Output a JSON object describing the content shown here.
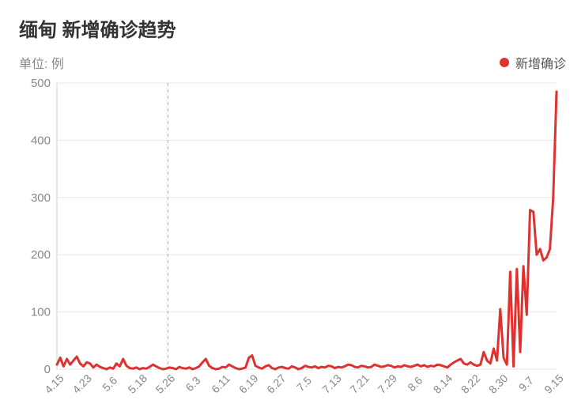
{
  "chart": {
    "type": "line",
    "title": "缅甸 新增确诊趋势",
    "unit_label": "单位: 例",
    "legend_label": "新增确诊",
    "series_color": "#e03131",
    "legend_dot_color": "#e03131",
    "background_color": "#ffffff",
    "grid_color": "#e7e7e7",
    "axis_label_color": "#888888",
    "title_color": "#333333",
    "title_fontsize": 24,
    "label_fontsize": 15,
    "line_width": 3,
    "ylim": [
      0,
      500
    ],
    "ytick_step": 100,
    "yticks": [
      0,
      100,
      200,
      300,
      400,
      500
    ],
    "xticks": [
      "4.15",
      "4.23",
      "5.6",
      "5.18",
      "5.26",
      "6.3",
      "6.11",
      "6.19",
      "6.27",
      "7.5",
      "7.13",
      "7.21",
      "7.29",
      "8.6",
      "8.14",
      "8.22",
      "8.30",
      "9.7",
      "9.15"
    ],
    "xtick_rotation": -45,
    "vline_at_index": 4,
    "vline_color": "#b8b8b8",
    "vline_dash": "4 4",
    "values": [
      8,
      20,
      5,
      18,
      8,
      15,
      22,
      10,
      5,
      12,
      10,
      3,
      8,
      4,
      2,
      0,
      3,
      1,
      10,
      5,
      18,
      6,
      2,
      1,
      3,
      0,
      2,
      1,
      4,
      8,
      5,
      2,
      0,
      1,
      3,
      2,
      0,
      4,
      2,
      1,
      3,
      0,
      2,
      5,
      12,
      18,
      6,
      2,
      0,
      1,
      4,
      3,
      8,
      5,
      2,
      0,
      1,
      3,
      20,
      24,
      6,
      3,
      1,
      5,
      7,
      2,
      0,
      3,
      4,
      2,
      1,
      5,
      3,
      0,
      2,
      6,
      4,
      3,
      5,
      2,
      4,
      3,
      6,
      5,
      2,
      4,
      3,
      5,
      8,
      7,
      4,
      3,
      6,
      5,
      3,
      4,
      8,
      6,
      4,
      5,
      7,
      6,
      3,
      5,
      4,
      7,
      5,
      4,
      6,
      8,
      5,
      7,
      4,
      6,
      5,
      8,
      7,
      5,
      3,
      8,
      12,
      15,
      18,
      10,
      8,
      12,
      8,
      6,
      8,
      30,
      15,
      10,
      36,
      15,
      105,
      20,
      8,
      170,
      5,
      175,
      30,
      180,
      95,
      278,
      275,
      200,
      210,
      190,
      195,
      210,
      300,
      485
    ]
  }
}
